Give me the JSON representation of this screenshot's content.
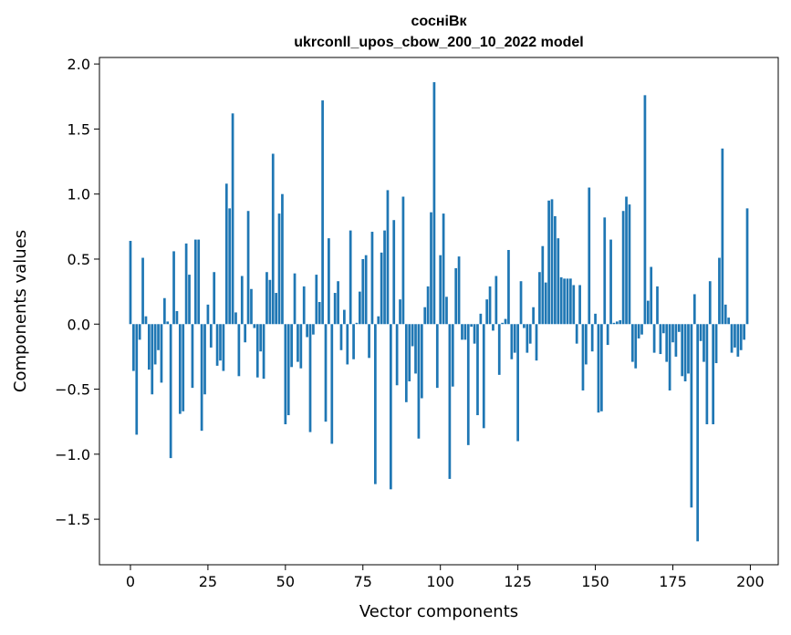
{
  "chart_data": {
    "type": "bar",
    "title": "сосніВк",
    "subtitle": "ukrconll_upos_cbow_200_10_2022 model",
    "xlabel": "Vector components",
    "ylabel": "Components values",
    "xlim": [
      -10,
      209
    ],
    "ylim": [
      -1.85,
      2.05
    ],
    "xticks": [
      0,
      25,
      50,
      75,
      100,
      125,
      150,
      175,
      200
    ],
    "xtick_labels": [
      "0",
      "25",
      "50",
      "75",
      "100",
      "125",
      "150",
      "175",
      "200"
    ],
    "yticks": [
      2.0,
      1.5,
      1.0,
      0.5,
      0.0,
      -0.5,
      -1.0,
      -1.5
    ],
    "ytick_labels": [
      "2.0",
      "1.5",
      "1.0",
      "0.5",
      "0.0",
      "−0.5",
      "−1.0",
      "−1.5"
    ],
    "bar_color": "#1f77b4",
    "grid": false,
    "x": [
      0,
      1,
      2,
      3,
      4,
      5,
      6,
      7,
      8,
      9,
      10,
      11,
      12,
      13,
      14,
      15,
      16,
      17,
      18,
      19,
      20,
      21,
      22,
      23,
      24,
      25,
      26,
      27,
      28,
      29,
      30,
      31,
      32,
      33,
      34,
      35,
      36,
      37,
      38,
      39,
      40,
      41,
      42,
      43,
      44,
      45,
      46,
      47,
      48,
      49,
      50,
      51,
      52,
      53,
      54,
      55,
      56,
      57,
      58,
      59,
      60,
      61,
      62,
      63,
      64,
      65,
      66,
      67,
      68,
      69,
      70,
      71,
      72,
      73,
      74,
      75,
      76,
      77,
      78,
      79,
      80,
      81,
      82,
      83,
      84,
      85,
      86,
      87,
      88,
      89,
      90,
      91,
      92,
      93,
      94,
      95,
      96,
      97,
      98,
      99,
      100,
      101,
      102,
      103,
      104,
      105,
      106,
      107,
      108,
      109,
      110,
      111,
      112,
      113,
      114,
      115,
      116,
      117,
      118,
      119,
      120,
      121,
      122,
      123,
      124,
      125,
      126,
      127,
      128,
      129,
      130,
      131,
      132,
      133,
      134,
      135,
      136,
      137,
      138,
      139,
      140,
      141,
      142,
      143,
      144,
      145,
      146,
      147,
      148,
      149,
      150,
      151,
      152,
      153,
      154,
      155,
      156,
      157,
      158,
      159,
      160,
      161,
      162,
      163,
      164,
      165,
      166,
      167,
      168,
      169,
      170,
      171,
      172,
      173,
      174,
      175,
      176,
      177,
      178,
      179,
      180,
      181,
      182,
      183,
      184,
      185,
      186,
      187,
      188,
      189,
      190,
      191,
      192,
      193,
      194,
      195,
      196,
      197,
      198,
      199
    ],
    "values": [
      0.64,
      -0.36,
      -0.85,
      -0.12,
      0.51,
      0.06,
      -0.35,
      -0.54,
      -0.31,
      -0.2,
      -0.45,
      0.2,
      0.02,
      -1.03,
      0.56,
      0.1,
      -0.69,
      -0.67,
      0.62,
      0.38,
      -0.49,
      0.65,
      0.65,
      -0.82,
      -0.54,
      0.15,
      -0.18,
      0.4,
      -0.32,
      -0.28,
      -0.36,
      1.08,
      0.89,
      1.62,
      0.09,
      -0.4,
      0.37,
      -0.14,
      0.87,
      0.27,
      -0.03,
      -0.41,
      -0.21,
      -0.42,
      0.4,
      0.34,
      1.31,
      0.24,
      0.85,
      1.0,
      -0.77,
      -0.7,
      -0.33,
      0.39,
      -0.29,
      -0.34,
      0.29,
      -0.1,
      -0.83,
      -0.08,
      0.38,
      0.17,
      1.72,
      -0.75,
      0.66,
      -0.92,
      0.24,
      0.33,
      -0.2,
      0.11,
      -0.31,
      0.72,
      -0.27,
      0.01,
      0.25,
      0.5,
      0.53,
      -0.26,
      0.71,
      -1.23,
      0.06,
      0.55,
      0.72,
      1.03,
      -1.27,
      0.8,
      -0.47,
      0.19,
      0.98,
      -0.6,
      -0.44,
      -0.17,
      -0.38,
      -0.88,
      -0.57,
      0.13,
      0.29,
      0.86,
      1.86,
      -0.49,
      0.53,
      0.85,
      0.21,
      -1.19,
      -0.48,
      0.43,
      0.52,
      -0.12,
      -0.12,
      -0.93,
      -0.02,
      -0.15,
      -0.7,
      0.08,
      -0.8,
      0.19,
      0.29,
      -0.05,
      0.37,
      -0.39,
      0.01,
      0.04,
      0.57,
      -0.27,
      -0.22,
      -0.9,
      0.33,
      -0.03,
      -0.22,
      -0.15,
      0.13,
      -0.28,
      0.4,
      0.6,
      0.32,
      0.95,
      0.96,
      0.83,
      0.66,
      0.36,
      0.35,
      0.35,
      0.35,
      0.3,
      -0.15,
      0.3,
      -0.51,
      -0.31,
      1.05,
      -0.21,
      0.08,
      -0.68,
      -0.67,
      0.82,
      -0.16,
      0.65,
      0.01,
      0.02,
      0.03,
      0.87,
      0.98,
      0.92,
      -0.29,
      -0.34,
      -0.11,
      -0.08,
      1.76,
      0.18,
      0.44,
      -0.22,
      0.29,
      -0.23,
      -0.07,
      -0.29,
      -0.51,
      -0.14,
      -0.25,
      -0.06,
      -0.4,
      -0.44,
      -0.38,
      -1.41,
      0.23,
      -1.67,
      -0.13,
      -0.29,
      -0.77,
      0.33,
      -0.77,
      -0.3,
      0.51,
      1.35,
      0.15,
      0.05,
      -0.22,
      -0.18,
      -0.25,
      -0.2,
      -0.12,
      0.89
    ]
  }
}
